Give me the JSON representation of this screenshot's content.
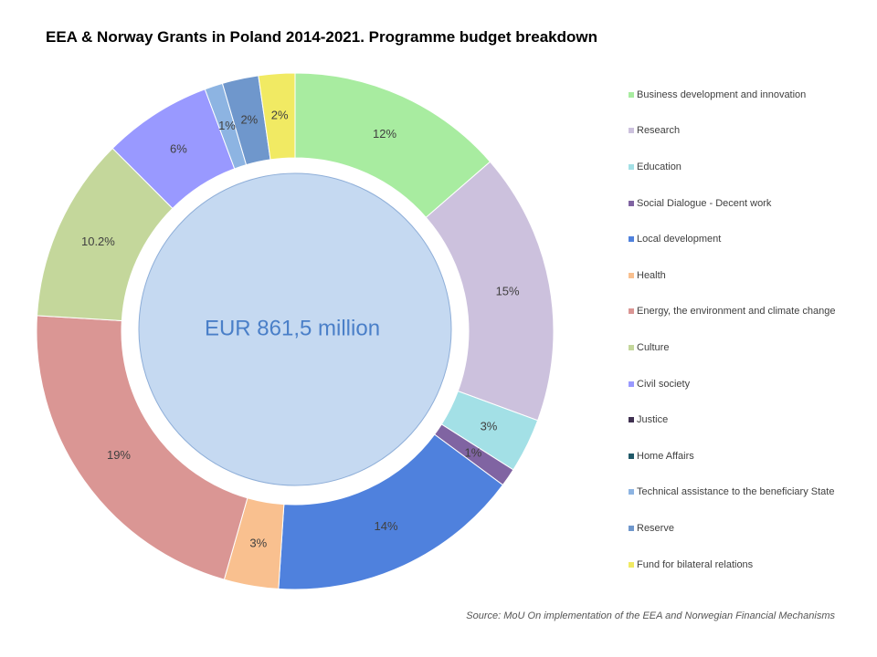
{
  "title": "EEA & Norway Grants in Poland 2014-2021. Programme budget breakdown",
  "source": "Source: MoU On implementation of the EEA and Norwegian Financial Mechanisms",
  "chart_data": {
    "type": "pie",
    "title": "EEA & Norway Grants in Poland 2014-2021. Programme budget breakdown",
    "center_label": "EUR 861,5 million",
    "legend_placement": "right",
    "categories": [
      "Business development and innovation",
      "Research",
      "Education",
      "Social Dialogue - Decent work",
      "Local development",
      "Health",
      "Energy, the environment and climate change",
      "Culture",
      "Civil society",
      "Justice",
      "Home Affairs",
      "Technical assistance to the beneficiary State",
      "Reserve",
      "Fund for bilateral relations"
    ],
    "values": [
      12,
      15,
      3,
      1,
      14,
      3,
      19,
      10.2,
      6,
      0,
      0,
      1,
      2,
      2
    ],
    "data_labels": [
      "12%",
      "15%",
      "3%",
      "1%",
      "14%",
      "3%",
      "19%",
      "10.2%",
      "6%",
      "",
      "",
      "1%",
      "2%",
      "2%"
    ],
    "colors": [
      "#a8eca0",
      "#ccc1dd",
      "#a3e0e6",
      "#8064a2",
      "#4f81dd",
      "#f9c08f",
      "#da9694",
      "#c4d79b",
      "#9999ff",
      "#403151",
      "#215968",
      "#8db4e2",
      "#6f97cc",
      "#f1ea63"
    ]
  }
}
